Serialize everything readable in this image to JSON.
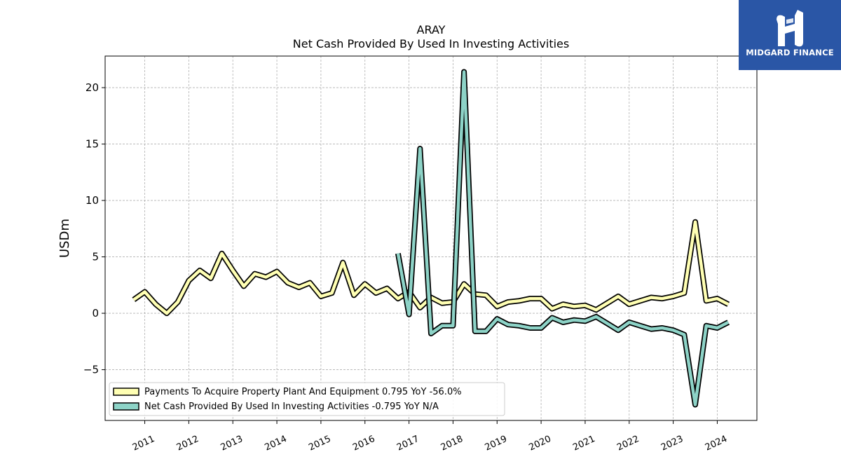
{
  "chart_data": {
    "type": "line",
    "title": "ARAY",
    "subtitle": "Net Cash Provided By Used In Investing Activities",
    "ylabel": "USDm",
    "xlabel": "",
    "xlim": [
      2010.1,
      2024.9
    ],
    "ylim": [
      -9.5,
      22.8
    ],
    "yticks": [
      -5,
      0,
      5,
      10,
      15,
      20
    ],
    "xticks": [
      "2011",
      "2012",
      "2013",
      "2014",
      "2015",
      "2016",
      "2017",
      "2018",
      "2019",
      "2020",
      "2021",
      "2022",
      "2023",
      "2024"
    ],
    "grid": true,
    "legend_position": "lower-left",
    "series": [
      {
        "name": "Payments To Acquire Property Plant And Equipment",
        "legend_label": "Payments To Acquire Property Plant And Equipment  0.795 YoY -56.0%",
        "color": "#ffffb3",
        "x": [
          2010.75,
          2011.0,
          2011.25,
          2011.5,
          2011.75,
          2012.0,
          2012.25,
          2012.5,
          2012.75,
          2013.0,
          2013.25,
          2013.5,
          2013.75,
          2014.0,
          2014.25,
          2014.5,
          2014.75,
          2015.0,
          2015.25,
          2015.5,
          2015.75,
          2016.0,
          2016.25,
          2016.5,
          2016.75,
          2017.0,
          2017.25,
          2017.5,
          2017.75,
          2018.0,
          2018.25,
          2018.5,
          2018.75,
          2019.0,
          2019.25,
          2019.5,
          2019.75,
          2020.0,
          2020.25,
          2020.5,
          2020.75,
          2021.0,
          2021.25,
          2021.5,
          2021.75,
          2022.0,
          2022.25,
          2022.5,
          2022.75,
          2023.0,
          2023.25,
          2023.5,
          2023.75,
          2024.0,
          2024.25
        ],
        "values": [
          1.2,
          1.9,
          0.8,
          0.0,
          1.0,
          2.9,
          3.8,
          3.1,
          5.3,
          3.8,
          2.4,
          3.5,
          3.2,
          3.7,
          2.7,
          2.3,
          2.7,
          1.5,
          1.8,
          4.5,
          1.6,
          2.6,
          1.8,
          2.2,
          1.3,
          1.9,
          0.5,
          1.4,
          0.9,
          1.0,
          2.6,
          1.7,
          1.6,
          0.6,
          1.0,
          1.1,
          1.3,
          1.3,
          0.4,
          0.8,
          0.6,
          0.7,
          0.3,
          0.9,
          1.5,
          0.8,
          1.1,
          1.4,
          1.3,
          1.5,
          1.8,
          8.1,
          1.1,
          1.3,
          0.795
        ]
      },
      {
        "name": "Net Cash Provided By Used In Investing Activities",
        "legend_label": "Net Cash Provided By Used In Investing Activities  -0.795 YoY N/A",
        "color": "#8dd3c7",
        "x": [
          2016.75,
          2017.0,
          2017.25,
          2017.5,
          2017.75,
          2018.0,
          2018.25,
          2018.5,
          2018.75,
          2019.0,
          2019.25,
          2019.5,
          2019.75,
          2020.0,
          2020.25,
          2020.5,
          2020.75,
          2021.0,
          2021.25,
          2021.5,
          2021.75,
          2022.0,
          2022.25,
          2022.5,
          2022.75,
          2023.0,
          2023.25,
          2023.5,
          2023.75,
          2024.0,
          2024.25
        ],
        "values": [
          5.3,
          -0.1,
          14.6,
          -1.8,
          -1.1,
          -1.1,
          21.4,
          -1.6,
          -1.6,
          -0.5,
          -1.0,
          -1.1,
          -1.3,
          -1.3,
          -0.4,
          -0.8,
          -0.6,
          -0.7,
          -0.3,
          -0.9,
          -1.5,
          -0.8,
          -1.1,
          -1.4,
          -1.3,
          -1.5,
          -1.9,
          -8.1,
          -1.1,
          -1.3,
          -0.795
        ]
      }
    ]
  },
  "logo": {
    "text": "MIDGARD FINANCE",
    "background": "#2a56a6"
  }
}
